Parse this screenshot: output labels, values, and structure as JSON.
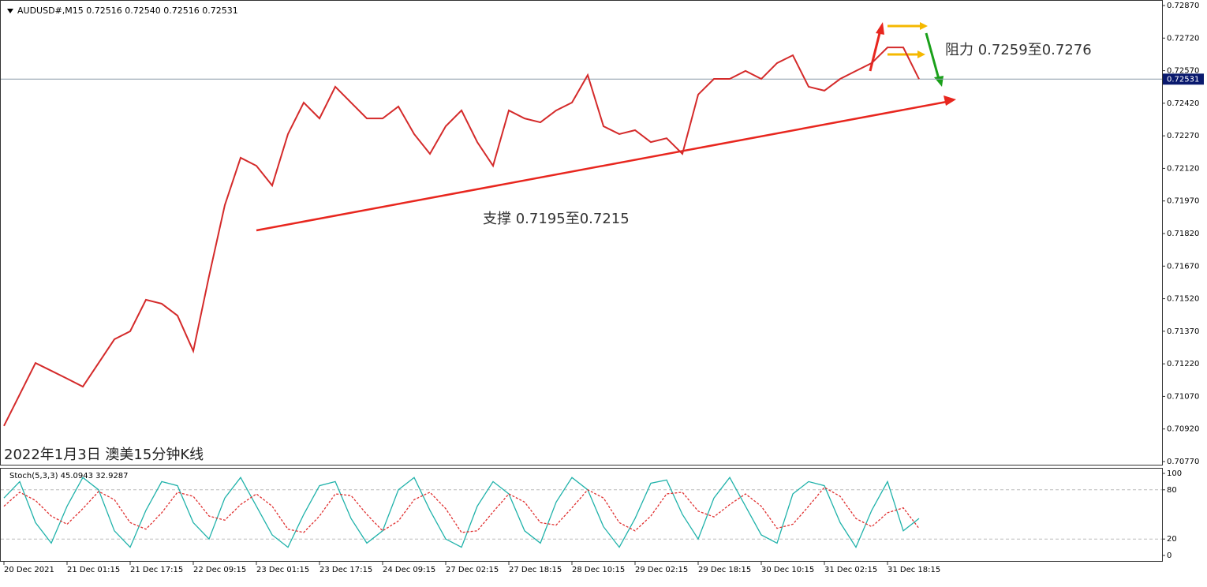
{
  "chart_data": [
    {
      "type": "line",
      "title": "AUDUSD#,M15  0.72516 0.72540 0.72516 0.72531",
      "annotations": [
        "支撑 0.7195至0.7215",
        "阻力 0.7259至0.7276",
        "2022年1月3日 澳美15分钟K线"
      ],
      "current_price": {
        "value": 0.72531,
        "label": "0.72531"
      },
      "categories": [
        "20 Dec 2021",
        null,
        null,
        null,
        "21 Dec 01:15",
        null,
        null,
        null,
        "21 Dec 17:15",
        null,
        null,
        null,
        "22 Dec 09:15",
        null,
        null,
        null,
        "23 Dec 01:15",
        null,
        null,
        null,
        "23 Dec 17:15",
        null,
        null,
        null,
        "24 Dec 09:15",
        null,
        null,
        null,
        "27 Dec 02:15",
        null,
        null,
        null,
        "27 Dec 18:15",
        null,
        null,
        null,
        "28 Dec 10:15",
        null,
        null,
        null,
        "29 Dec 02:15",
        null,
        null,
        null,
        "29 Dec 18:15",
        null,
        null,
        null,
        "30 Dec 10:15",
        null,
        null,
        null,
        "31 Dec 02:15",
        null,
        null,
        null,
        "31 Dec 18:15",
        null,
        null
      ],
      "series": [
        {
          "name": "AUDUSD#",
          "color": "#d42a2a",
          "values": [
            0.70934,
            0.71079,
            0.71224,
            0.71188,
            0.71152,
            0.71115,
            0.71224,
            0.71333,
            0.7137,
            0.71515,
            0.71497,
            0.71442,
            0.71279,
            0.71624,
            0.71951,
            0.72169,
            0.72132,
            0.72041,
            0.72278,
            0.72423,
            0.7235,
            0.72496,
            0.72423,
            0.7235,
            0.7235,
            0.72405,
            0.72278,
            0.72187,
            0.72314,
            0.72387,
            0.72241,
            0.72132,
            0.72387,
            0.7235,
            0.72332,
            0.72387,
            0.72423,
            0.7255,
            0.72314,
            0.72278,
            0.72296,
            0.72241,
            0.72259,
            0.72187,
            0.7246,
            0.72532,
            0.72532,
            0.72569,
            0.72532,
            0.72605,
            0.72641,
            0.72496,
            0.72478,
            0.72532,
            0.72569,
            0.72605,
            0.72677,
            0.72677,
            0.72531
          ]
        }
      ],
      "ylim": [
        0.7077,
        0.7287
      ],
      "yticks": [
        {
          "value": 0.7287,
          "label": "0.72870"
        },
        {
          "value": 0.7272,
          "label": "0.72720"
        },
        {
          "value": 0.7257,
          "label": "0.72570"
        },
        {
          "value": 0.7242,
          "label": "0.72420"
        },
        {
          "value": 0.7227,
          "label": "0.72270"
        },
        {
          "value": 0.7212,
          "label": "0.72120"
        },
        {
          "value": 0.7197,
          "label": "0.71970"
        },
        {
          "value": 0.7182,
          "label": "0.71820"
        },
        {
          "value": 0.7167,
          "label": "0.71670"
        },
        {
          "value": 0.7152,
          "label": "0.71520"
        },
        {
          "value": 0.7137,
          "label": "0.71370"
        },
        {
          "value": 0.7122,
          "label": "0.71220"
        },
        {
          "value": 0.7107,
          "label": "0.71070"
        },
        {
          "value": 0.7092,
          "label": "0.70920"
        },
        {
          "value": 0.7077,
          "label": "0.70770"
        }
      ]
    },
    {
      "type": "line",
      "title": "Stoch(5,3,3) 45.0943 32.9287",
      "series": [
        {
          "name": "Main",
          "color": "#20b2aa",
          "values": [
            70,
            90,
            40,
            15,
            60,
            95,
            80,
            30,
            10,
            55,
            90,
            85,
            40,
            20,
            70,
            95,
            60,
            25,
            10,
            50,
            85,
            90,
            45,
            15,
            30,
            80,
            95,
            55,
            20,
            10,
            60,
            90,
            75,
            30,
            15,
            65,
            95,
            80,
            35,
            10,
            45,
            88,
            92,
            50,
            20,
            70,
            95,
            60,
            25,
            15,
            75,
            90,
            85,
            40,
            10,
            55,
            90,
            30,
            45.0943
          ]
        },
        {
          "name": "Signal",
          "color": "#e03030",
          "values": [
            60,
            77,
            67,
            48,
            38,
            57,
            78,
            68,
            40,
            32,
            52,
            77,
            72,
            48,
            43,
            62,
            75,
            60,
            32,
            28,
            48,
            75,
            73,
            50,
            30,
            42,
            68,
            77,
            57,
            28,
            30,
            53,
            75,
            65,
            40,
            37,
            58,
            80,
            70,
            40,
            30,
            48,
            75,
            77,
            54,
            47,
            62,
            75,
            60,
            33,
            38,
            60,
            83,
            72,
            45,
            35,
            52,
            58,
            32.9287
          ]
        }
      ],
      "ylim": [
        0,
        100
      ],
      "yticks": [
        100,
        80,
        20,
        0
      ]
    }
  ]
}
